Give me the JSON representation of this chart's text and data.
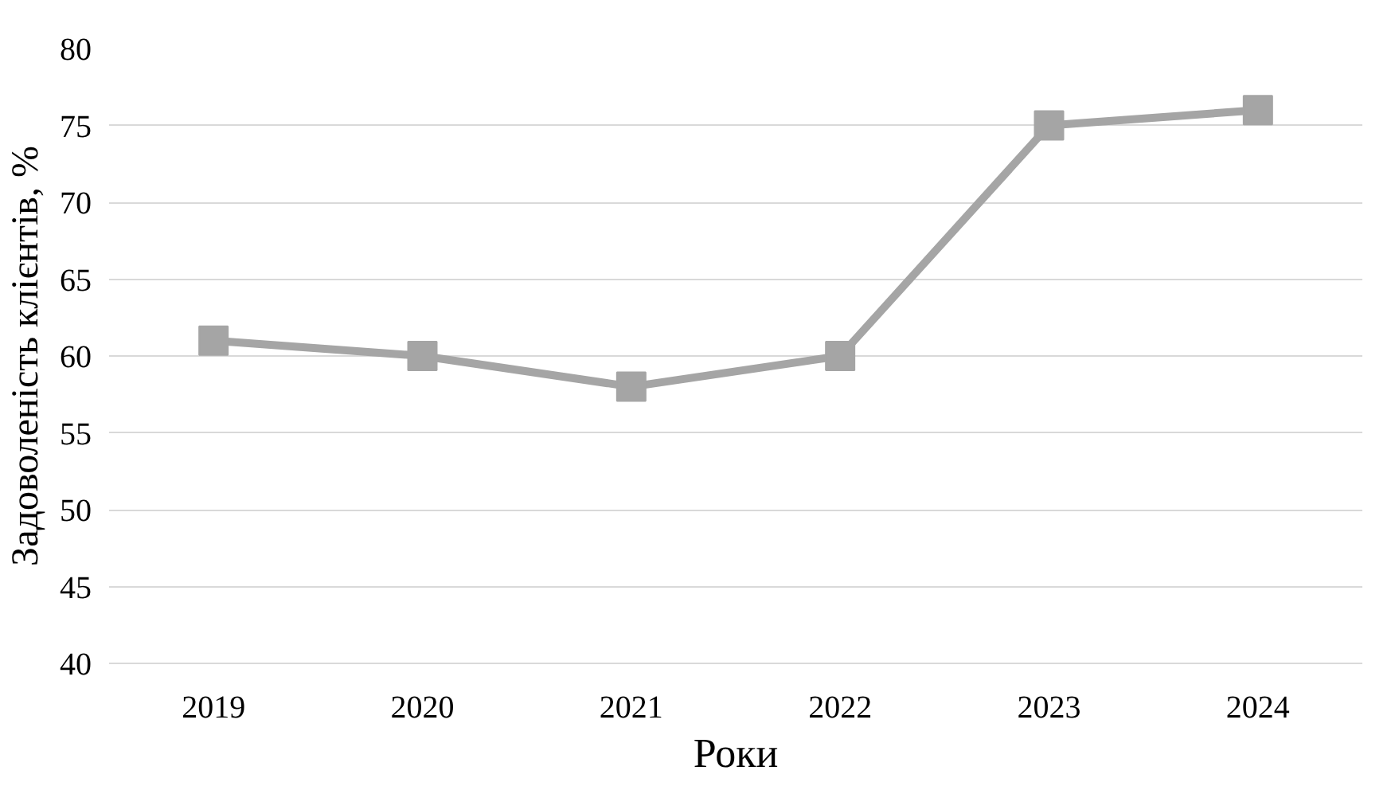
{
  "chart_data": {
    "type": "line",
    "xlabel": "Роки",
    "ylabel": "Задоволеність клієнтів, %",
    "categories": [
      "2019",
      "2020",
      "2021",
      "2022",
      "2023",
      "2024"
    ],
    "series": [
      {
        "color": "#a5a5a5",
        "values": [
          61,
          60,
          58,
          60,
          75,
          76
        ]
      }
    ],
    "ylim": [
      40,
      80
    ],
    "yticks": [
      40,
      45,
      50,
      55,
      60,
      65,
      70,
      75,
      80
    ],
    "grid": "y",
    "marker": "square",
    "line_style": "solid"
  }
}
